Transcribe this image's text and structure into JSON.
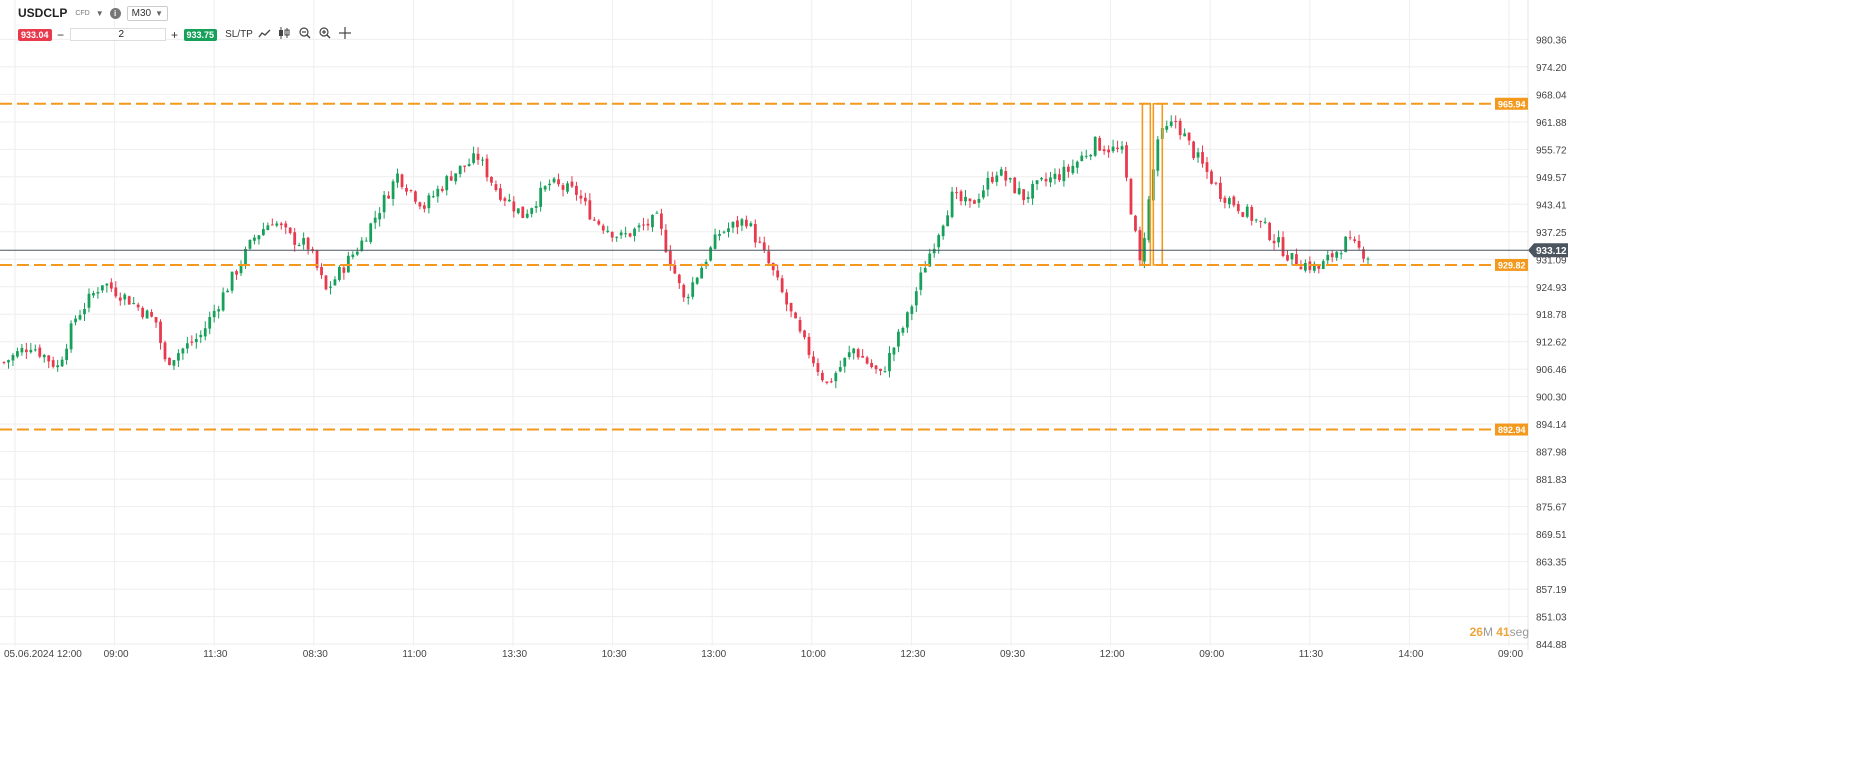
{
  "toolbar": {
    "symbol": "USDCLP",
    "instrument_type": "CFD",
    "timeframe": "M30",
    "sell_price": "933.04",
    "buy_price": "933.75",
    "quantity": "2",
    "sltp_label": "SL/TP",
    "minus_label": "−",
    "plus_label": "+"
  },
  "icons": [
    "info-icon",
    "line-chart-icon",
    "candlestick-icon",
    "zoom-out-icon",
    "zoom-in-icon",
    "crosshair-icon"
  ],
  "timer": {
    "minutes": "26",
    "m_label": "M",
    "seconds": "41",
    "s_label": "seg"
  },
  "chart_data": {
    "type": "candlestick",
    "ylim": [
      844.88,
      986.5
    ],
    "y_ticks": [
      "980.36",
      "974.20",
      "968.04",
      "961.88",
      "955.72",
      "949.57",
      "943.41",
      "937.25",
      "931.09",
      "924.93",
      "918.78",
      "912.62",
      "906.46",
      "900.30",
      "894.14",
      "887.98",
      "881.83",
      "875.67",
      "869.51",
      "863.35",
      "857.19",
      "851.03",
      "844.88"
    ],
    "x_labels": [
      "05.06.2024 12:00",
      "09:00",
      "11:30",
      "08:30",
      "11:00",
      "13:30",
      "10:30",
      "13:00",
      "10:00",
      "12:30",
      "09:30",
      "12:00",
      "09:00",
      "11:30",
      "14:00",
      "09:00"
    ],
    "current_price": 933.12,
    "current_price_label": "933.12",
    "levels": [
      {
        "value": 965.94,
        "label": "965.94"
      },
      {
        "value": 929.82,
        "label": "929.82"
      },
      {
        "value": 892.94,
        "label": "892.94"
      }
    ],
    "highlight_box": {
      "from_index": 255,
      "to_index": 259,
      "high": 965.94,
      "low": 929.82
    },
    "close_anchors": [
      [
        0,
        908
      ],
      [
        6,
        912
      ],
      [
        12,
        907
      ],
      [
        16,
        918
      ],
      [
        22,
        926
      ],
      [
        28,
        922
      ],
      [
        34,
        917
      ],
      [
        36,
        908
      ],
      [
        44,
        914
      ],
      [
        50,
        925
      ],
      [
        56,
        936
      ],
      [
        60,
        940
      ],
      [
        64,
        936
      ],
      [
        68,
        934
      ],
      [
        72,
        924
      ],
      [
        80,
        935
      ],
      [
        88,
        950
      ],
      [
        94,
        943
      ],
      [
        100,
        950
      ],
      [
        106,
        954
      ],
      [
        110,
        947
      ],
      [
        116,
        941
      ],
      [
        122,
        948
      ],
      [
        128,
        946
      ],
      [
        132,
        940
      ],
      [
        138,
        936
      ],
      [
        146,
        940
      ],
      [
        152,
        922
      ],
      [
        160,
        937
      ],
      [
        166,
        940
      ],
      [
        172,
        928
      ],
      [
        178,
        914
      ],
      [
        184,
        903
      ],
      [
        190,
        911
      ],
      [
        196,
        905
      ],
      [
        202,
        918
      ],
      [
        206,
        930
      ],
      [
        212,
        945
      ],
      [
        216,
        943
      ],
      [
        222,
        951
      ],
      [
        228,
        945
      ],
      [
        232,
        948
      ],
      [
        238,
        951
      ],
      [
        244,
        957
      ],
      [
        250,
        955
      ],
      [
        254,
        930
      ],
      [
        258,
        958
      ],
      [
        262,
        962
      ],
      [
        266,
        955
      ],
      [
        272,
        946
      ],
      [
        276,
        943
      ],
      [
        282,
        938
      ],
      [
        288,
        931
      ],
      [
        294,
        929
      ],
      [
        300,
        935
      ],
      [
        305,
        932
      ]
    ]
  }
}
